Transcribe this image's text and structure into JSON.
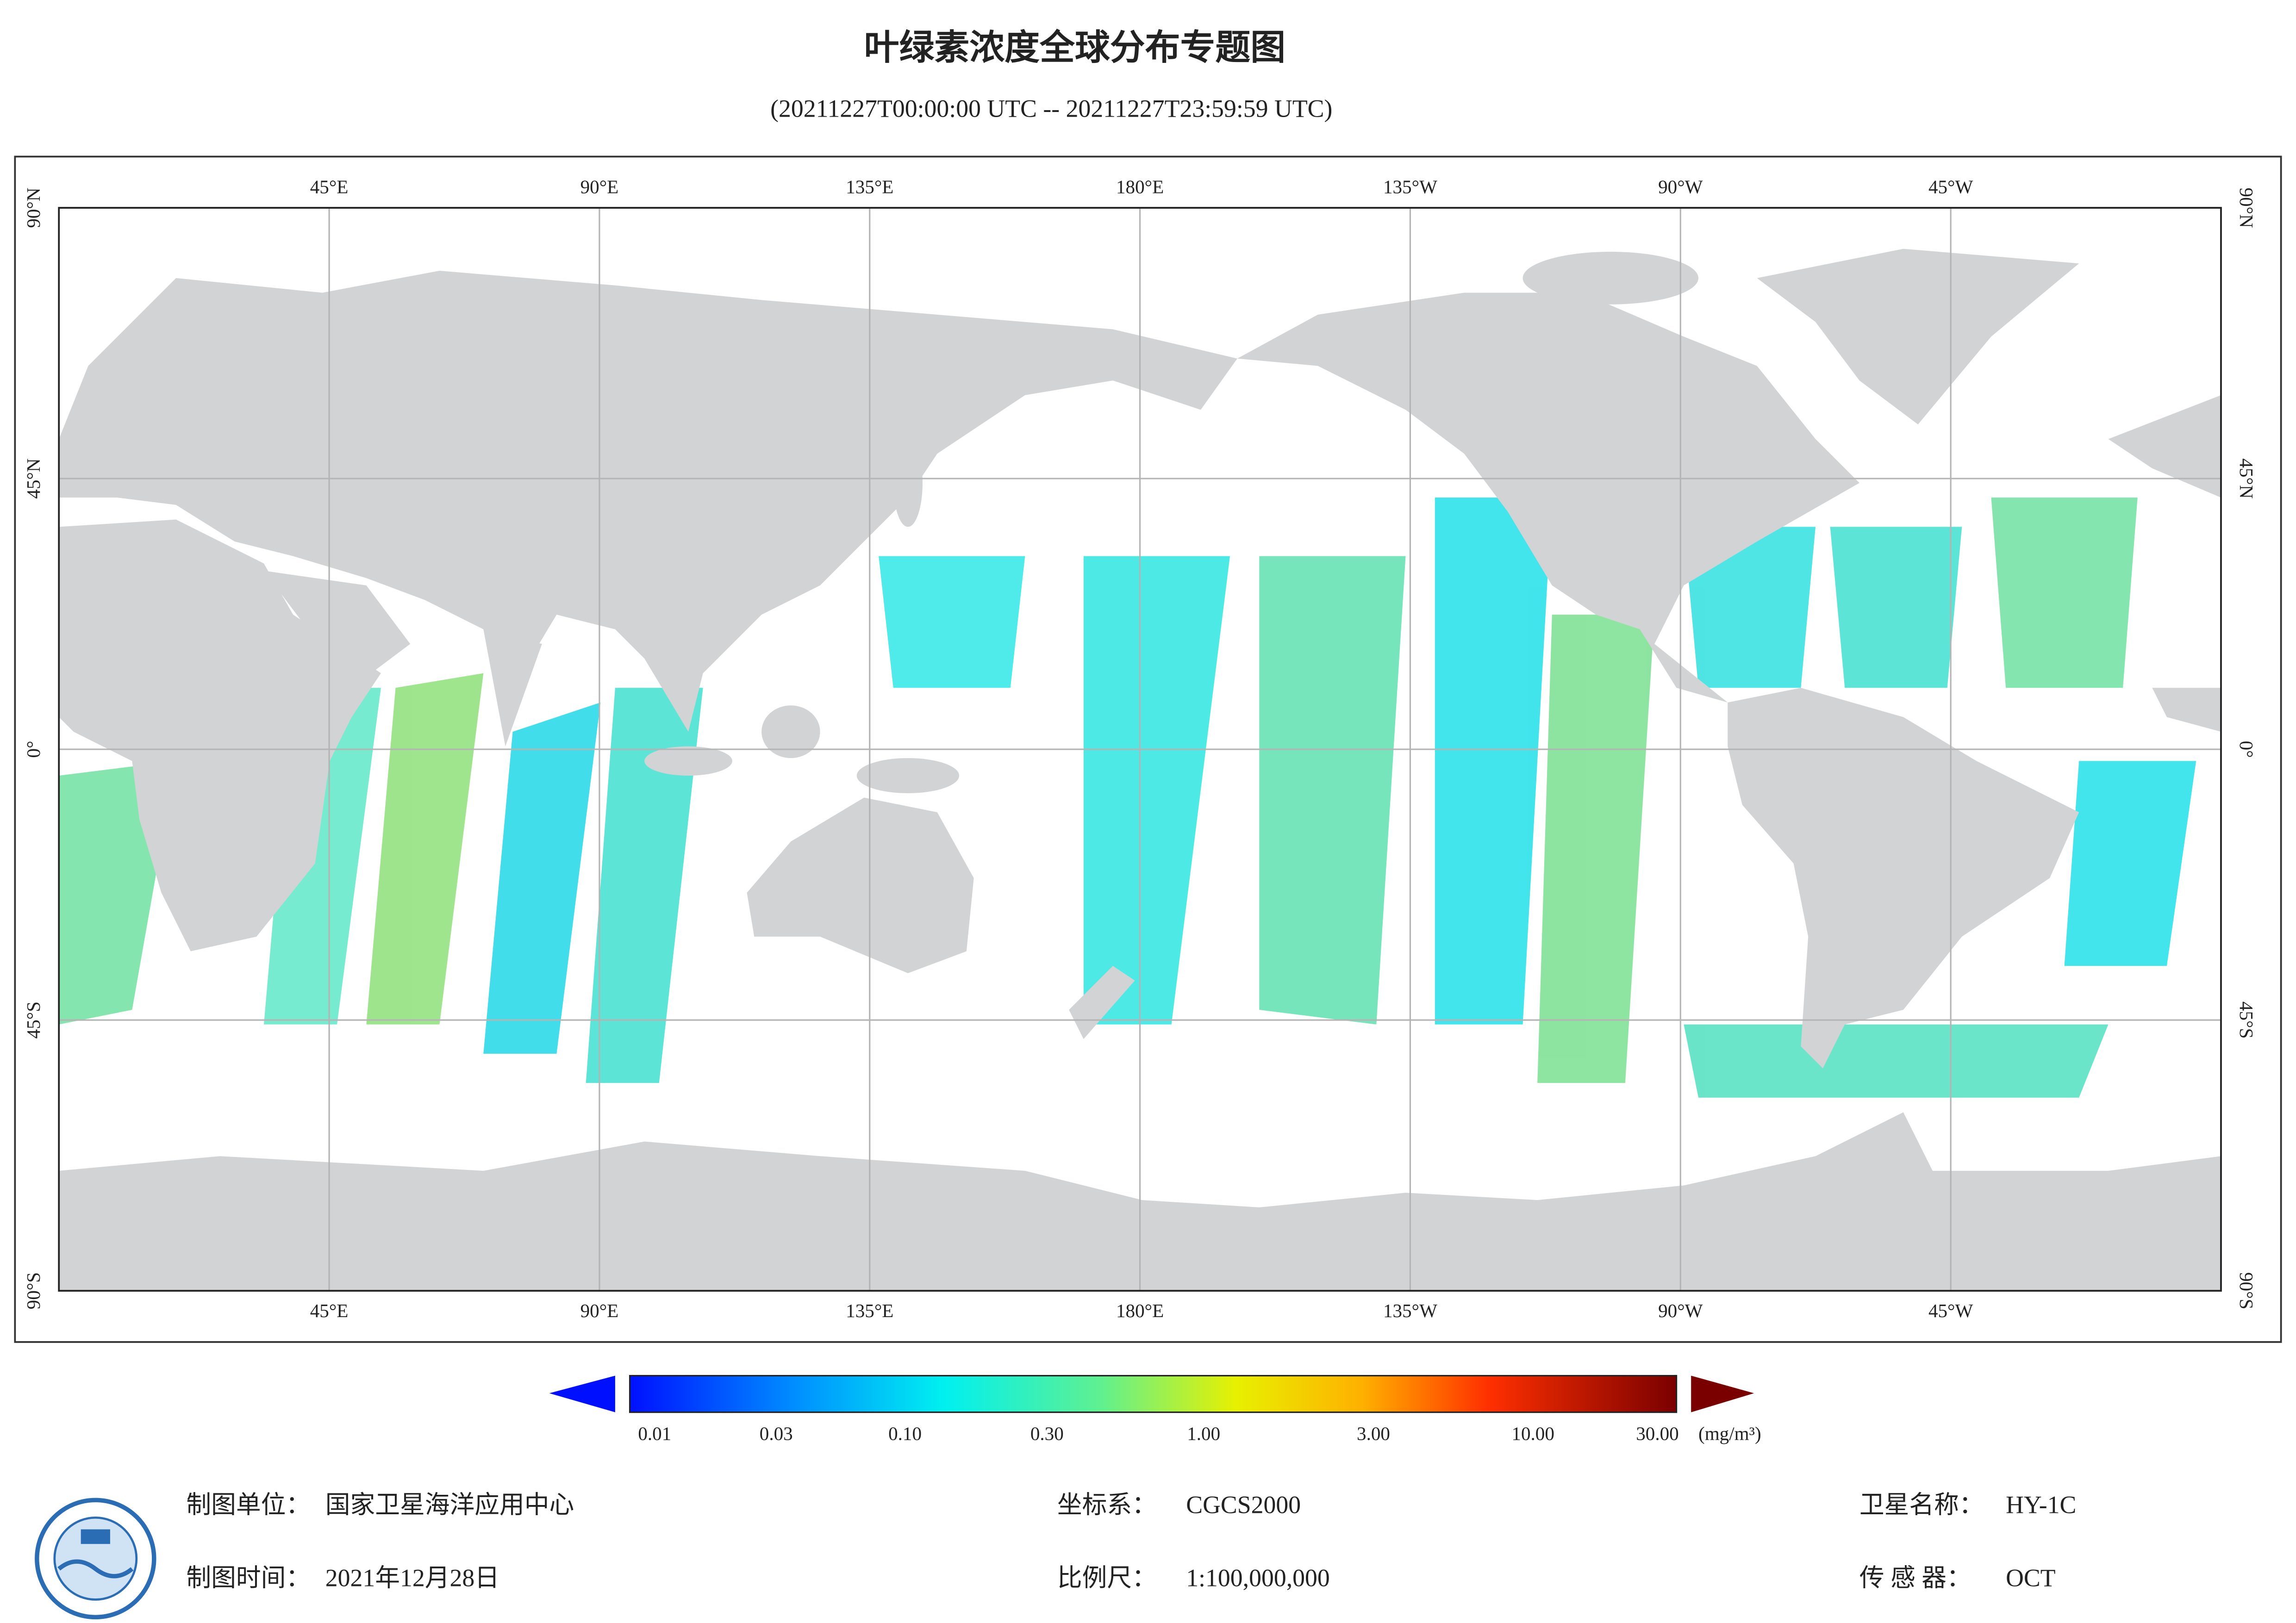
{
  "header": {
    "title": "叶绿素浓度全球分布专题图",
    "subtitle": "(20211227T00:00:00 UTC -- 20211227T23:59:59 UTC)"
  },
  "map": {
    "longitude_labels": [
      "45°E",
      "90°E",
      "135°E",
      "180°E",
      "135°W",
      "90°W",
      "45°W"
    ],
    "latitude_labels": [
      "90°N",
      "45°N",
      "0°",
      "45°S",
      "90°S"
    ]
  },
  "colorbar": {
    "ticks": [
      "0.01",
      "0.03",
      "0.10",
      "0.30",
      "1.00",
      "3.00",
      "10.00",
      "30.00"
    ],
    "unit": "(mg/m³)"
  },
  "footer": {
    "unit_label": "制图单位：",
    "unit_value": "国家卫星海洋应用中心",
    "date_label": "制图时间：",
    "date_value": "2021年12月28日",
    "crs_label": "坐标系：",
    "crs_value": "CGCS2000",
    "scale_label": "比例尺：",
    "scale_value": "1:100,000,000",
    "satellite_label": "卫星名称：",
    "satellite_value": "HY-1C",
    "sensor_label": "传 感 器：",
    "sensor_value": "OCT"
  }
}
